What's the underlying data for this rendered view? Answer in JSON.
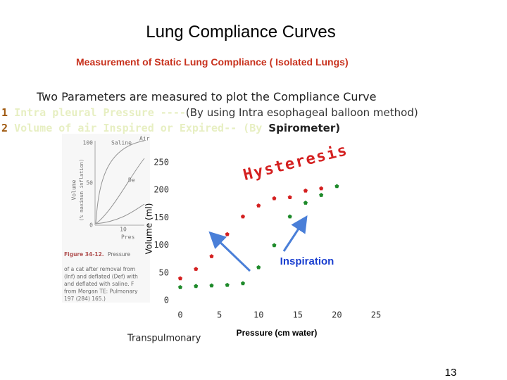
{
  "slide": {
    "title": "Lung Compliance Curves",
    "subtitle": "Measurement of Static Lung Compliance ( Isolated Lungs)",
    "intro": "Two Parameters are measured to plot the  Compliance Curve",
    "items": [
      {
        "number": "1",
        "faded": "Intra pleural Pressure ----",
        "rest": "(By using Intra esophageal balloon method)"
      },
      {
        "number": "2",
        "faded": "Volume of air Inspired or Expired-- (By ",
        "rest": "Spirometer)"
      }
    ],
    "figure": {
      "labels": [
        "Saline",
        "Air",
        "Volume",
        "(% maximum inflation)",
        "100",
        "50",
        "0",
        "10",
        "Pres",
        "De"
      ],
      "caption": [
        "Figure 34-12.",
        "Pressure",
        "of a cat after removal from",
        "(Inf) and deflated (Def) with",
        "and deflated with saline. F",
        "from Morgan TE: Pulmonary",
        "197 (284) 165.)"
      ]
    },
    "footer_label": "Transpulmonary",
    "page_number": "13"
  },
  "chart_data": {
    "type": "scatter",
    "x_label": "Pressure (cm water)",
    "y_label": "Volume (ml)",
    "annotations": [
      "Hysteresis",
      "Inspiration"
    ],
    "series": [
      {
        "color": "#d42020",
        "x": [
          0,
          2,
          4,
          6,
          8,
          10,
          12,
          14,
          16,
          18
        ],
        "values": [
          40,
          57,
          80,
          120,
          152,
          172,
          185,
          187,
          199,
          203
        ]
      },
      {
        "color": "#1e8a2a",
        "x": [
          0,
          2,
          4,
          6,
          8,
          10,
          12,
          14,
          16,
          18,
          20
        ],
        "values": [
          24,
          26,
          27,
          28,
          31,
          60,
          100,
          152,
          177,
          191,
          207
        ]
      }
    ],
    "xlim": [
      0,
      25
    ],
    "xticks": [
      0,
      5,
      10,
      15,
      20,
      25
    ],
    "ylim": [
      0,
      250
    ],
    "yticks": [
      0,
      50,
      100,
      150,
      200,
      250
    ],
    "grid": false
  }
}
